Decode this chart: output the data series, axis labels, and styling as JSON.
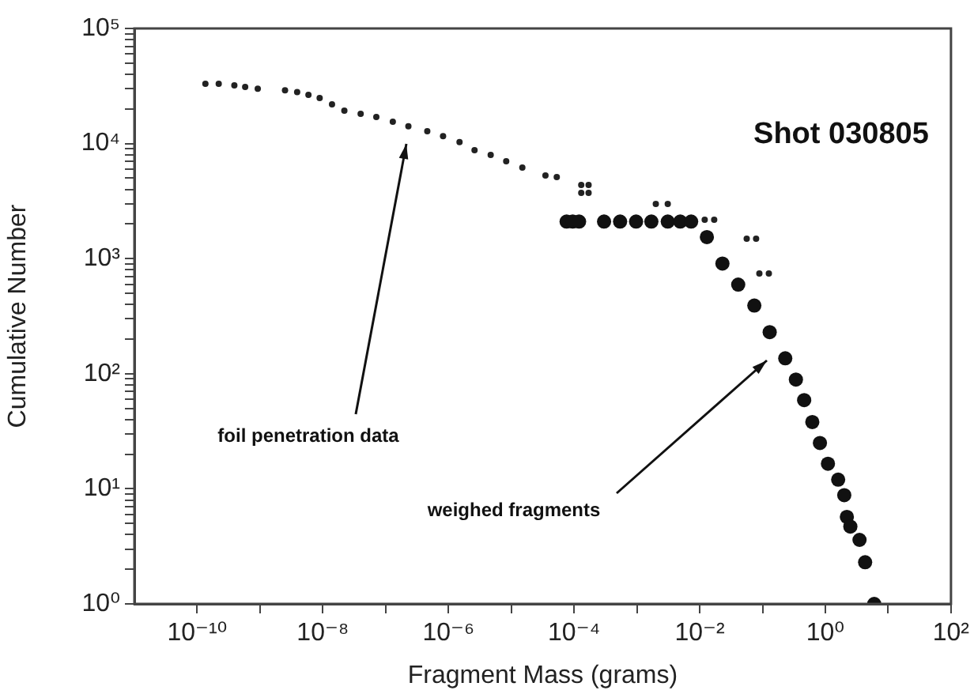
{
  "chart_data": {
    "type": "scatter",
    "xlabel": "Fragment Mass (grams)",
    "ylabel": "Cumulative Number",
    "log": "xy",
    "grid": false,
    "legend": false,
    "marker": "circle",
    "xlim": [
      1e-11,
      100
    ],
    "ylim": [
      1,
      100000
    ],
    "xticks": [
      {
        "value": 1e-10,
        "label": "10⁻¹⁰"
      },
      {
        "value": 1e-09,
        "label": null
      },
      {
        "value": 1e-08,
        "label": "10⁻⁸"
      },
      {
        "value": 1e-07,
        "label": null
      },
      {
        "value": 1e-06,
        "label": "10⁻⁶"
      },
      {
        "value": 1e-05,
        "label": null
      },
      {
        "value": 0.0001,
        "label": "10⁻⁴"
      },
      {
        "value": 0.001,
        "label": null
      },
      {
        "value": 0.01,
        "label": "10⁻²"
      },
      {
        "value": 0.1,
        "label": null
      },
      {
        "value": 1,
        "label": "10⁰"
      },
      {
        "value": 10,
        "label": null
      },
      {
        "value": 100,
        "label": "10²"
      }
    ],
    "yticks": [
      {
        "value": 1,
        "label": "10⁰"
      },
      {
        "value": 2,
        "label": null
      },
      {
        "value": 3,
        "label": null
      },
      {
        "value": 4,
        "label": null
      },
      {
        "value": 5,
        "label": null
      },
      {
        "value": 6,
        "label": null
      },
      {
        "value": 7,
        "label": null
      },
      {
        "value": 8,
        "label": null
      },
      {
        "value": 9,
        "label": null
      },
      {
        "value": 10,
        "label": "10¹"
      },
      {
        "value": 20,
        "label": null
      },
      {
        "value": 30,
        "label": null
      },
      {
        "value": 40,
        "label": null
      },
      {
        "value": 50,
        "label": null
      },
      {
        "value": 60,
        "label": null
      },
      {
        "value": 70,
        "label": null
      },
      {
        "value": 80,
        "label": null
      },
      {
        "value": 90,
        "label": null
      },
      {
        "value": 100,
        "label": "10²"
      },
      {
        "value": 200,
        "label": null
      },
      {
        "value": 300,
        "label": null
      },
      {
        "value": 400,
        "label": null
      },
      {
        "value": 500,
        "label": null
      },
      {
        "value": 600,
        "label": null
      },
      {
        "value": 700,
        "label": null
      },
      {
        "value": 800,
        "label": null
      },
      {
        "value": 900,
        "label": null
      },
      {
        "value": 1000,
        "label": "10³"
      },
      {
        "value": 2000,
        "label": null
      },
      {
        "value": 3000,
        "label": null
      },
      {
        "value": 4000,
        "label": null
      },
      {
        "value": 5000,
        "label": null
      },
      {
        "value": 6000,
        "label": null
      },
      {
        "value": 7000,
        "label": null
      },
      {
        "value": 8000,
        "label": null
      },
      {
        "value": 9000,
        "label": null
      },
      {
        "value": 10000,
        "label": "10⁴"
      },
      {
        "value": 20000,
        "label": null
      },
      {
        "value": 30000,
        "label": null
      },
      {
        "value": 40000,
        "label": null
      },
      {
        "value": 50000,
        "label": null
      },
      {
        "value": 60000,
        "label": null
      },
      {
        "value": 70000,
        "label": null
      },
      {
        "value": 80000,
        "label": null
      },
      {
        "value": 90000,
        "label": null
      },
      {
        "value": 100000,
        "label": "10⁵"
      }
    ],
    "series": [
      {
        "color": "#222222",
        "x": [
          1.35e-10,
          2.2e-10,
          3.9e-10,
          5.8e-10,
          9.2e-10,
          2.5e-09,
          3.9e-09,
          5.9e-09,
          8.9e-09,
          1.4e-08,
          2.2e-08,
          4e-08,
          7.1e-08,
          1.3e-07,
          2.3e-07,
          4.6e-07,
          8.2e-07,
          1.5e-06,
          2.6e-06,
          4.7e-06,
          8.3e-06,
          1.5e-05,
          3.5e-05,
          5.3e-05,
          0.00013,
          0.00017,
          0.00013,
          0.00017,
          0.002,
          0.0031,
          0.012,
          0.017,
          0.056,
          0.079,
          0.089,
          0.126
        ],
        "values": [
          33000,
          33000,
          32000,
          31000,
          30000,
          29000,
          28000,
          26500,
          24900,
          21900,
          19300,
          18100,
          17000,
          15500,
          14100,
          12800,
          11600,
          10300,
          8750,
          7960,
          7020,
          6180,
          5280,
          5120,
          4370,
          4370,
          3730,
          3730,
          2990,
          2990,
          2180,
          2180,
          1490,
          1490,
          743,
          743
        ]
      },
      {
        "color": "#111111",
        "x": [
          7.6e-05,
          9.5e-05,
          0.00012,
          0.0003,
          0.00054,
          0.00097,
          0.0017,
          0.0031,
          0.0049,
          0.0073,
          0.013,
          0.023,
          0.041,
          0.074,
          0.13,
          0.23,
          0.34,
          0.46,
          0.62,
          0.82,
          1.1,
          1.6,
          2.0,
          2.2,
          2.5,
          3.5,
          4.3,
          6.0
        ],
        "values": [
          2100,
          2100,
          2100,
          2100,
          2100,
          2100,
          2100,
          2100,
          2100,
          2100,
          1540,
          906,
          595,
          391,
          230,
          136,
          89,
          59,
          38,
          25,
          16.5,
          12,
          8.8,
          5.7,
          4.7,
          3.6,
          2.3,
          1
        ]
      }
    ],
    "annotations": [
      "Shot 030805",
      "foil penetration data",
      "weighed fragments"
    ]
  }
}
